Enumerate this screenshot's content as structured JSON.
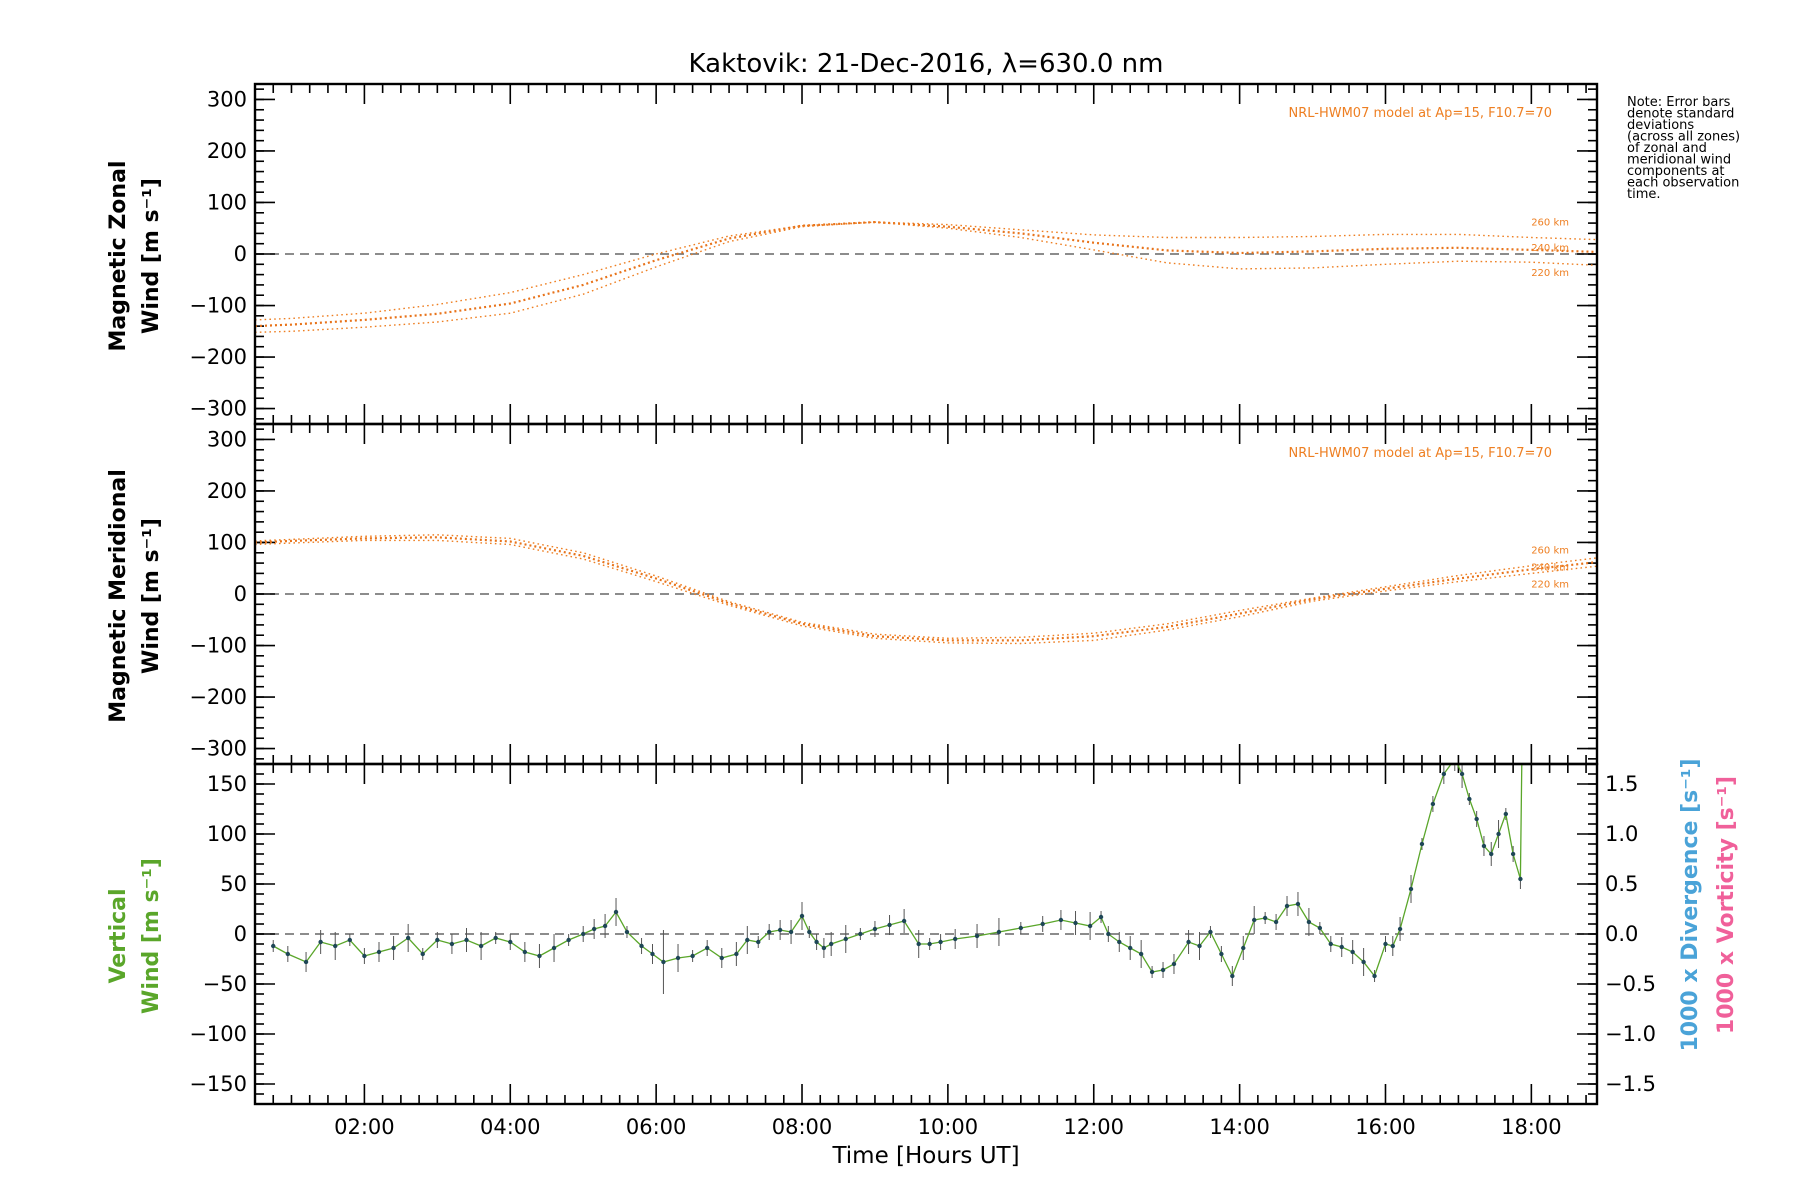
{
  "title": "Kaktovik: 21-Dec-2016, λ=630.0 nm",
  "note": {
    "lines": [
      "Note: Error bars",
      "denote standard",
      "deviations",
      "(across all zones)",
      "of zonal and",
      "meridional wind",
      "components at",
      "each observation",
      "time."
    ]
  },
  "xaxis": {
    "label": "Time [Hours UT]",
    "range": [
      0.5,
      18.9
    ],
    "ticks": [
      2,
      4,
      6,
      8,
      10,
      12,
      14,
      16,
      18
    ],
    "tick_labels": [
      "02:00",
      "04:00",
      "06:00",
      "08:00",
      "10:00",
      "12:00",
      "14:00",
      "16:00",
      "18:00"
    ]
  },
  "colors": {
    "model": "#ee7f22",
    "vertical": "#5aa62a",
    "divergence": "#4aa3d8",
    "vorticity": "#f0609a",
    "points": "#1e4656"
  },
  "chart_data": [
    {
      "type": "line",
      "panel": "zonal",
      "ylabel_line1": "Magnetic Zonal",
      "ylabel_line2": "Wind [m s⁻¹]",
      "ylim": [
        -330,
        330
      ],
      "yticks": [
        -300,
        -200,
        -100,
        0,
        100,
        200,
        300
      ],
      "ytick_labels": [
        "−300",
        "−200",
        "−100",
        "0",
        "100",
        "200",
        "300"
      ],
      "model_label": "NRL-HWM07 model at Ap=15, F10.7=70",
      "x": [
        0.5,
        1,
        2,
        3,
        4,
        5,
        6,
        7,
        8,
        9,
        10,
        11,
        12,
        13,
        14,
        15,
        16,
        17,
        18,
        18.9
      ],
      "series": [
        {
          "name": "260 km",
          "values": [
            -128,
            -125,
            -115,
            -98,
            -75,
            -40,
            0,
            35,
            55,
            62,
            57,
            47,
            37,
            32,
            32,
            34,
            38,
            38,
            32,
            28
          ]
        },
        {
          "name": "240 km",
          "values": [
            -140,
            -137,
            -128,
            -116,
            -96,
            -60,
            -12,
            30,
            55,
            62,
            53,
            40,
            22,
            7,
            2,
            5,
            10,
            12,
            8,
            4
          ]
        },
        {
          "name": "220 km",
          "values": [
            -152,
            -150,
            -142,
            -132,
            -115,
            -78,
            -25,
            24,
            53,
            62,
            50,
            32,
            8,
            -17,
            -29,
            -27,
            -20,
            -14,
            -16,
            -22
          ]
        }
      ]
    },
    {
      "type": "line",
      "panel": "meridional",
      "ylabel_line1": "Magnetic Meridional",
      "ylabel_line2": "Wind [m s⁻¹]",
      "ylim": [
        -330,
        330
      ],
      "yticks": [
        -300,
        -200,
        -100,
        0,
        100,
        200,
        300
      ],
      "ytick_labels": [
        "−300",
        "−200",
        "−100",
        "0",
        "100",
        "200",
        "300"
      ],
      "model_label": "NRL-HWM07 model at Ap=15, F10.7=70",
      "x": [
        0.5,
        1,
        2,
        3,
        4,
        5,
        6,
        7,
        8,
        9,
        10,
        11,
        12,
        13,
        14,
        15,
        16,
        17,
        18,
        18.9
      ],
      "series": [
        {
          "name": "260 km",
          "values": [
            103,
            106,
            112,
            115,
            108,
            80,
            35,
            -15,
            -55,
            -78,
            -86,
            -84,
            -76,
            -58,
            -32,
            -8,
            14,
            36,
            55,
            70
          ]
        },
        {
          "name": "240 km",
          "values": [
            100,
            103,
            108,
            110,
            102,
            74,
            30,
            -18,
            -58,
            -82,
            -90,
            -90,
            -82,
            -64,
            -38,
            -10,
            10,
            30,
            48,
            62
          ]
        },
        {
          "name": "220 km",
          "values": [
            96,
            99,
            104,
            104,
            96,
            68,
            24,
            -22,
            -62,
            -86,
            -95,
            -96,
            -90,
            -70,
            -44,
            -14,
            6,
            24,
            40,
            54
          ]
        }
      ]
    },
    {
      "type": "line",
      "panel": "vertical",
      "ylabel_line1": "Vertical",
      "ylabel_line2": "Wind [m s⁻¹]",
      "ylim": [
        -170,
        170
      ],
      "yticks": [
        -150,
        -100,
        -50,
        0,
        50,
        100,
        150
      ],
      "ytick_labels": [
        "−150",
        "−100",
        "−50",
        "0",
        "50",
        "100",
        "150"
      ],
      "right_axis": {
        "label_divergence": "1000 x Divergence [s⁻¹]",
        "label_vorticity": "1000 x Vorticity [s⁻¹]",
        "ylim": [
          -1.7,
          1.7
        ],
        "yticks": [
          -1.5,
          -1.0,
          -0.5,
          0.0,
          0.5,
          1.0,
          1.5
        ],
        "ytick_labels": [
          "−1.5",
          "−1.0",
          "−0.5",
          "0.0",
          "0.5",
          "1.0",
          "1.5"
        ]
      },
      "series": [
        {
          "name": "Vertical",
          "x": [
            0.75,
            0.95,
            1.2,
            1.4,
            1.6,
            1.8,
            2.0,
            2.2,
            2.4,
            2.6,
            2.8,
            3.0,
            3.2,
            3.4,
            3.6,
            3.8,
            4.0,
            4.2,
            4.4,
            4.6,
            4.8,
            5.0,
            5.15,
            5.3,
            5.45,
            5.6,
            5.8,
            5.95,
            6.1,
            6.3,
            6.5,
            6.7,
            6.9,
            7.1,
            7.25,
            7.4,
            7.55,
            7.7,
            7.85,
            8.0,
            8.1,
            8.2,
            8.3,
            8.4,
            8.6,
            8.8,
            9.0,
            9.2,
            9.4,
            9.6,
            9.75,
            9.9,
            10.1,
            10.4,
            10.7,
            11.0,
            11.3,
            11.55,
            11.75,
            11.95,
            12.1,
            12.2,
            12.35,
            12.5,
            12.65,
            12.8,
            12.95,
            13.1,
            13.3,
            13.45,
            13.6,
            13.75,
            13.9,
            14.05,
            14.2,
            14.35,
            14.5,
            14.65,
            14.8,
            14.95,
            15.1,
            15.25,
            15.4,
            15.55,
            15.7,
            15.85,
            16.0,
            16.1,
            16.2,
            16.35,
            16.5,
            16.65,
            16.8,
            16.95,
            17.05,
            17.15,
            17.25,
            17.35,
            17.45,
            17.55,
            17.65,
            17.75,
            17.85,
            17.87
          ],
          "values": [
            -12,
            -20,
            -28,
            -8,
            -12,
            -6,
            -22,
            -18,
            -14,
            -4,
            -20,
            -6,
            -10,
            -6,
            -12,
            -4,
            -8,
            -18,
            -22,
            -14,
            -6,
            0,
            5,
            8,
            22,
            2,
            -12,
            -20,
            -28,
            -24,
            -22,
            -14,
            -24,
            -20,
            -6,
            -8,
            2,
            4,
            2,
            18,
            2,
            -8,
            -14,
            -10,
            -5,
            0,
            5,
            9,
            13,
            -10,
            -10,
            -8,
            -5,
            -2,
            2,
            6,
            10,
            14,
            11,
            8,
            17,
            0,
            -8,
            -14,
            -20,
            -38,
            -36,
            -30,
            -8,
            -12,
            2,
            -20,
            -42,
            -14,
            14,
            16,
            12,
            28,
            30,
            12,
            6,
            -10,
            -13,
            -18,
            -28,
            -42,
            -10,
            -12,
            5,
            45,
            90,
            130,
            160,
            175,
            160,
            135,
            115,
            88,
            80,
            100,
            120,
            80,
            55,
            180
          ]
        }
      ]
    }
  ]
}
